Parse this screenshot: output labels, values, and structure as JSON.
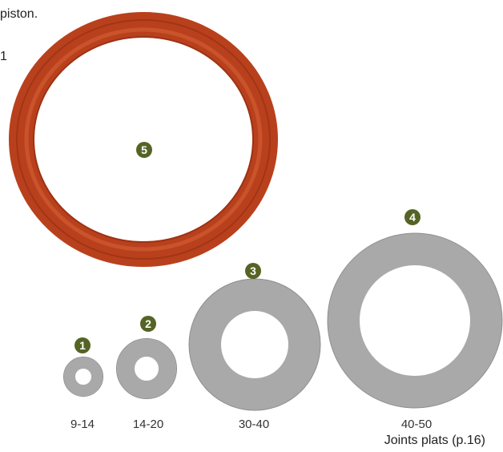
{
  "text": {
    "top_line": "piston.",
    "left_fragment": "1",
    "caption": "Joints plats (p.16)"
  },
  "oring": {
    "badge": "5",
    "color": "#c2461f"
  },
  "washers": [
    {
      "badge": "1",
      "size": "9-14"
    },
    {
      "badge": "2",
      "size": "14-20"
    },
    {
      "badge": "3",
      "size": "30-40"
    },
    {
      "badge": "4",
      "size": "40-50"
    }
  ],
  "colors": {
    "badge": "#556425",
    "washer": "#a9a9a9"
  }
}
